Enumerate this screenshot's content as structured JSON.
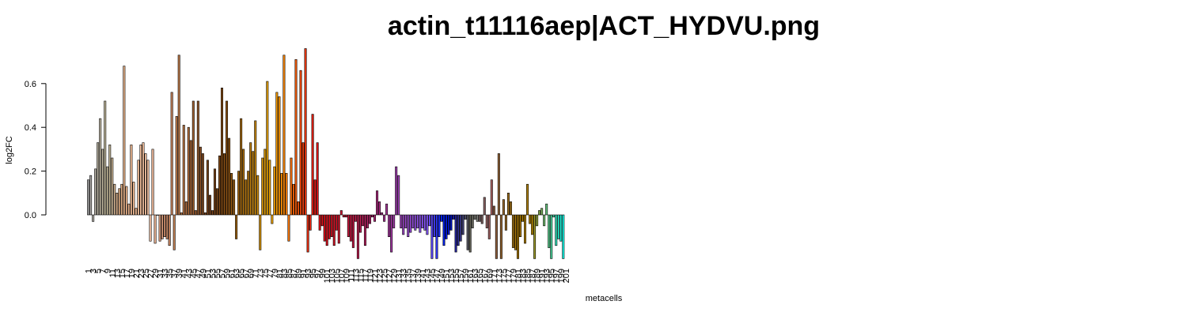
{
  "chart_data": {
    "type": "bar",
    "title": "actin_t11116aep|ACT_HYDVU.png",
    "xlabel": "metacells",
    "ylabel": "log2FC",
    "ylim": [
      -0.2,
      0.76
    ],
    "y_ticks": [
      0.0,
      0.2,
      0.4,
      0.6
    ],
    "y_tick_labels": [
      "0.0",
      "0.2",
      "0.4",
      "0.6"
    ],
    "x_tick_labels": [
      "1",
      "3",
      "5",
      "7",
      "9",
      "11",
      "13",
      "15",
      "17",
      "19",
      "21",
      "23",
      "25",
      "27",
      "29",
      "31",
      "33",
      "35",
      "37",
      "39",
      "41",
      "43",
      "45",
      "47",
      "49",
      "51",
      "53",
      "55",
      "57",
      "59",
      "61",
      "63",
      "65",
      "67",
      "69",
      "71",
      "73",
      "75",
      "77",
      "79",
      "81",
      "83",
      "85",
      "87",
      "89",
      "91",
      "93",
      "95",
      "97",
      "99",
      "101",
      "103",
      "105",
      "107",
      "109",
      "111",
      "113",
      "115",
      "117",
      "119",
      "121",
      "123",
      "125",
      "127",
      "129",
      "131",
      "133",
      "135",
      "137",
      "139",
      "141",
      "143",
      "145",
      "147",
      "149",
      "151",
      "153",
      "155",
      "157",
      "159",
      "161",
      "163",
      "165",
      "167",
      "169",
      "171",
      "173",
      "175",
      "177",
      "179",
      "181",
      "183",
      "185",
      "187",
      "189",
      "191",
      "193",
      "195",
      "197",
      "199",
      "201"
    ],
    "grid": false,
    "bar_border_color": "#000000",
    "categories_count": 201,
    "values": [
      0.16,
      0.18,
      -0.03,
      0.21,
      0.33,
      0.44,
      0.3,
      0.52,
      0.22,
      0.32,
      0.26,
      0.14,
      0.1,
      0.12,
      0.14,
      0.68,
      0.13,
      0.05,
      0.32,
      0.15,
      0.03,
      0.25,
      0.32,
      0.33,
      0.28,
      0.25,
      -0.12,
      0.3,
      -0.13,
      0.0,
      -0.12,
      -0.11,
      -0.1,
      -0.11,
      -0.14,
      0.56,
      -0.16,
      0.45,
      0.73,
      0.01,
      0.41,
      0.06,
      0.4,
      0.34,
      0.52,
      0.02,
      0.52,
      0.31,
      0.28,
      0.01,
      0.25,
      0.09,
      0.02,
      0.21,
      0.12,
      0.27,
      0.58,
      0.28,
      0.52,
      0.35,
      0.19,
      0.16,
      -0.11,
      0.2,
      0.44,
      0.3,
      0.16,
      0.2,
      0.33,
      0.29,
      0.43,
      0.18,
      -0.16,
      0.26,
      0.3,
      0.61,
      0.25,
      -0.04,
      0.22,
      0.56,
      0.54,
      0.19,
      0.73,
      0.19,
      -0.12,
      0.26,
      0.14,
      0.71,
      0.06,
      0.66,
      0.33,
      0.76,
      -0.17,
      -0.07,
      0.46,
      0.16,
      0.33,
      -0.07,
      -0.05,
      -0.12,
      -0.14,
      -0.11,
      -0.1,
      -0.14,
      -0.07,
      -0.13,
      0.02,
      -0.01,
      -0.01,
      -0.1,
      -0.12,
      -0.15,
      -0.03,
      -0.2,
      -0.08,
      -0.05,
      -0.14,
      -0.06,
      -0.04,
      -0.01,
      -0.03,
      0.11,
      0.06,
      0.01,
      -0.03,
      0.05,
      -0.1,
      -0.17,
      -0.06,
      0.22,
      0.18,
      -0.06,
      -0.09,
      -0.06,
      -0.1,
      -0.08,
      -0.06,
      -0.07,
      -0.06,
      -0.08,
      -0.06,
      -0.07,
      -0.09,
      -0.05,
      -0.2,
      -0.1,
      -0.2,
      -0.1,
      -0.03,
      -0.14,
      -0.11,
      -0.09,
      -0.07,
      -0.02,
      -0.17,
      -0.14,
      -0.12,
      -0.09,
      -0.02,
      -0.16,
      -0.17,
      -0.06,
      -0.02,
      -0.03,
      -0.03,
      -0.04,
      0.08,
      -0.06,
      -0.11,
      0.16,
      0.04,
      -0.2,
      0.28,
      -0.2,
      0.07,
      -0.07,
      0.1,
      0.06,
      -0.15,
      -0.16,
      -0.2,
      -0.1,
      -0.03,
      -0.13,
      0.14,
      -0.04,
      -0.09,
      -0.2,
      -0.05,
      0.02,
      0.03,
      -0.05,
      0.05,
      -0.15,
      -0.2,
      -0.01,
      -0.14,
      -0.11,
      -0.12,
      -0.2
    ],
    "colors": [
      "#a8a8a8",
      "#acaaa8",
      "#b0aca5",
      "#b4afa3",
      "#b7b1a0",
      "#bab29d",
      "#bcb39b",
      "#bdb498",
      "#bfb496",
      "#c1b393",
      "#c5b090",
      "#cbad8b",
      "#d2aa85",
      "#d8a87f",
      "#ddaa80",
      "#e2ad84",
      "#e6b088",
      "#e9b48c",
      "#ecb790",
      "#efba94",
      "#f1bd98",
      "#f3bf9b",
      "#f5c29e",
      "#f6c4a1",
      "#f7c5a3",
      "#f7c5a5",
      "#f3bfa0",
      "#eeb898",
      "#e8b090",
      "#e2a787",
      "#dc9f7f",
      "#d69776",
      "#d0906e",
      "#ca8a67",
      "#c58460",
      "#c48159",
      "#c38052",
      "#c07c4c",
      "#bc7847",
      "#b87443",
      "#b4703f",
      "#af6b3b",
      "#aa6737",
      "#a46233",
      "#9f5e2f",
      "#995a2c",
      "#935629",
      "#8d5226",
      "#874e23",
      "#824a20",
      "#7d471d",
      "#7a431b",
      "#7a441b",
      "#7b461a",
      "#7e4819",
      "#824b18",
      "#864e17",
      "#8a5116",
      "#8e5415",
      "#925714",
      "#965a13",
      "#9a5e12",
      "#9e6211",
      "#a26610",
      "#a66a0f",
      "#ab6e0e",
      "#b0720d",
      "#b5760c",
      "#ba7b0b",
      "#c0800a",
      "#c68509",
      "#cc8a08",
      "#d29007",
      "#d89506",
      "#de9b05",
      "#e4a004",
      "#eaa203",
      "#efa202",
      "#f39f02",
      "#f69a03",
      "#f89404",
      "#f98d05",
      "#fa8606",
      "#fa7e07",
      "#f97608",
      "#f86e09",
      "#f7650a",
      "#f55c0b",
      "#f3530c",
      "#f1490d",
      "#ef400e",
      "#ed370f",
      "#ea2e10",
      "#e82611",
      "#e51f12",
      "#e31913",
      "#e01414",
      "#de1115",
      "#dc0f16",
      "#da0e18",
      "#d80e1a",
      "#d60e1c",
      "#d40f1f",
      "#d21022",
      "#d01126",
      "#ce122a",
      "#cc132e",
      "#ca1432",
      "#c81536",
      "#c6163a",
      "#c4173f",
      "#c21844",
      "#c01a49",
      "#be1c4e",
      "#bc1e54",
      "#ba205a",
      "#b82260",
      "#b62466",
      "#b4266c",
      "#b22872",
      "#b02a78",
      "#ae2c7e",
      "#ac2e84",
      "#aa308a",
      "#a83290",
      "#a63496",
      "#a4369c",
      "#a238a2",
      "#a03aa8",
      "#9e3cae",
      "#9c3eb4",
      "#9a40ba",
      "#9842c0",
      "#9644c6",
      "#9446cc",
      "#9248d2",
      "#904ad8",
      "#8e4cde",
      "#8c4ee4",
      "#8a50ea",
      "#8852f0",
      "#8654f6",
      "#8456fc",
      "#6f4efc",
      "#5a46fc",
      "#453efc",
      "#3036fc",
      "#1b2efc",
      "#0626fc",
      "#0020f0",
      "#001ce0",
      "#0018d0",
      "#0014c0",
      "#1a1aa8",
      "#24249c",
      "#2e2e90",
      "#383884",
      "#424278",
      "#4c4c6c",
      "#565660",
      "#606054",
      "#6a6a60",
      "#74746c",
      "#7e7e78",
      "#6c5858",
      "#785c5c",
      "#845d5d",
      "#905e5e",
      "#9c5f5f",
      "#a86060",
      "#8a5a40",
      "#8d5d3a",
      "#906034",
      "#93632e",
      "#966628",
      "#996922",
      "#9c6c1c",
      "#9f6f16",
      "#a27210",
      "#a5750a",
      "#a87804",
      "#ab7b00",
      "#ae7e00",
      "#b18100",
      "#b48400",
      "#b78700",
      "#ba8a00",
      "#9c9a2a",
      "#90a23a",
      "#84aa4a",
      "#78b25a",
      "#6cba6a",
      "#60c27a",
      "#54ca8a",
      "#48d29a",
      "#3cdaaa",
      "#30e2ba",
      "#24eaca",
      "#18f2da",
      "#10f6e4",
      "#0cf8ea",
      "#08faf0",
      "#04fcf6",
      "#00fefc"
    ]
  }
}
